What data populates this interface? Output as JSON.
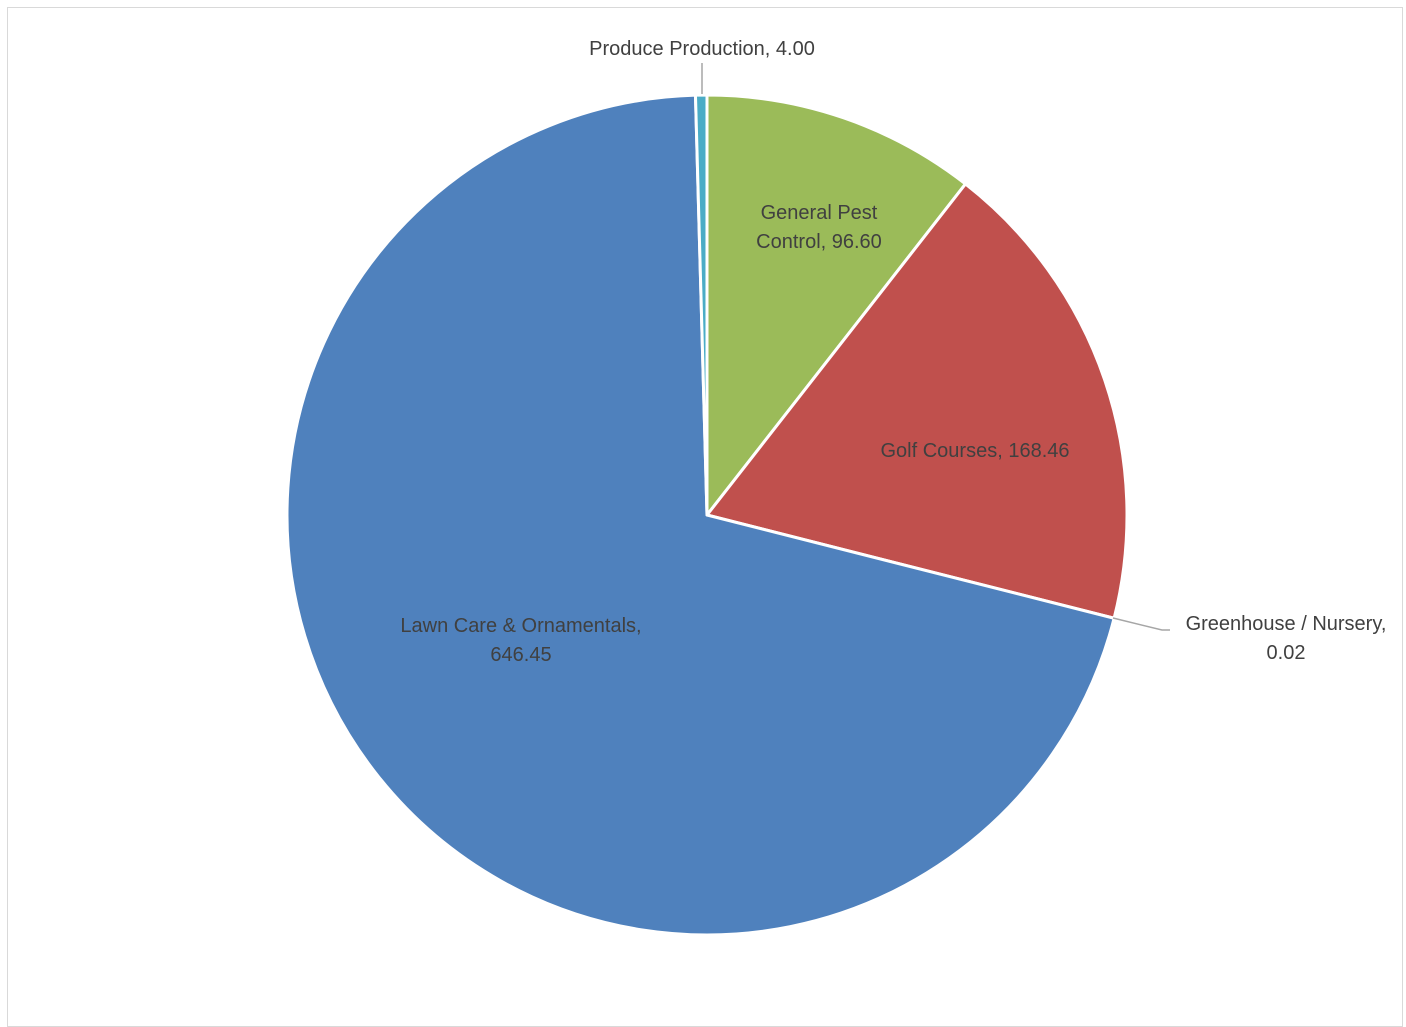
{
  "chart_data": {
    "type": "pie",
    "title": "",
    "slices": [
      {
        "name": "General Pest Control",
        "value": 96.6,
        "label_lines": [
          "General Pest",
          "Control, 96.60"
        ],
        "color": "#9bbb59"
      },
      {
        "name": "Golf Courses",
        "value": 168.46,
        "label_lines": [
          "Golf Courses, 168.46"
        ],
        "color": "#c0504d"
      },
      {
        "name": "Greenhouse / Nursery",
        "value": 0.02,
        "label_lines": [
          "Greenhouse / Nursery,",
          "0.02"
        ],
        "color": "#8064a2"
      },
      {
        "name": "Lawn Care & Ornamentals",
        "value": 646.45,
        "label_lines": [
          "Lawn Care & Ornamentals,",
          "646.45"
        ],
        "color": "#4f81bd"
      },
      {
        "name": "Produce Production",
        "value": 4.0,
        "label_lines": [
          "Produce Production, 4.00"
        ],
        "color": "#4bacc6"
      }
    ],
    "legend": "none",
    "data_labels": "category and value"
  }
}
